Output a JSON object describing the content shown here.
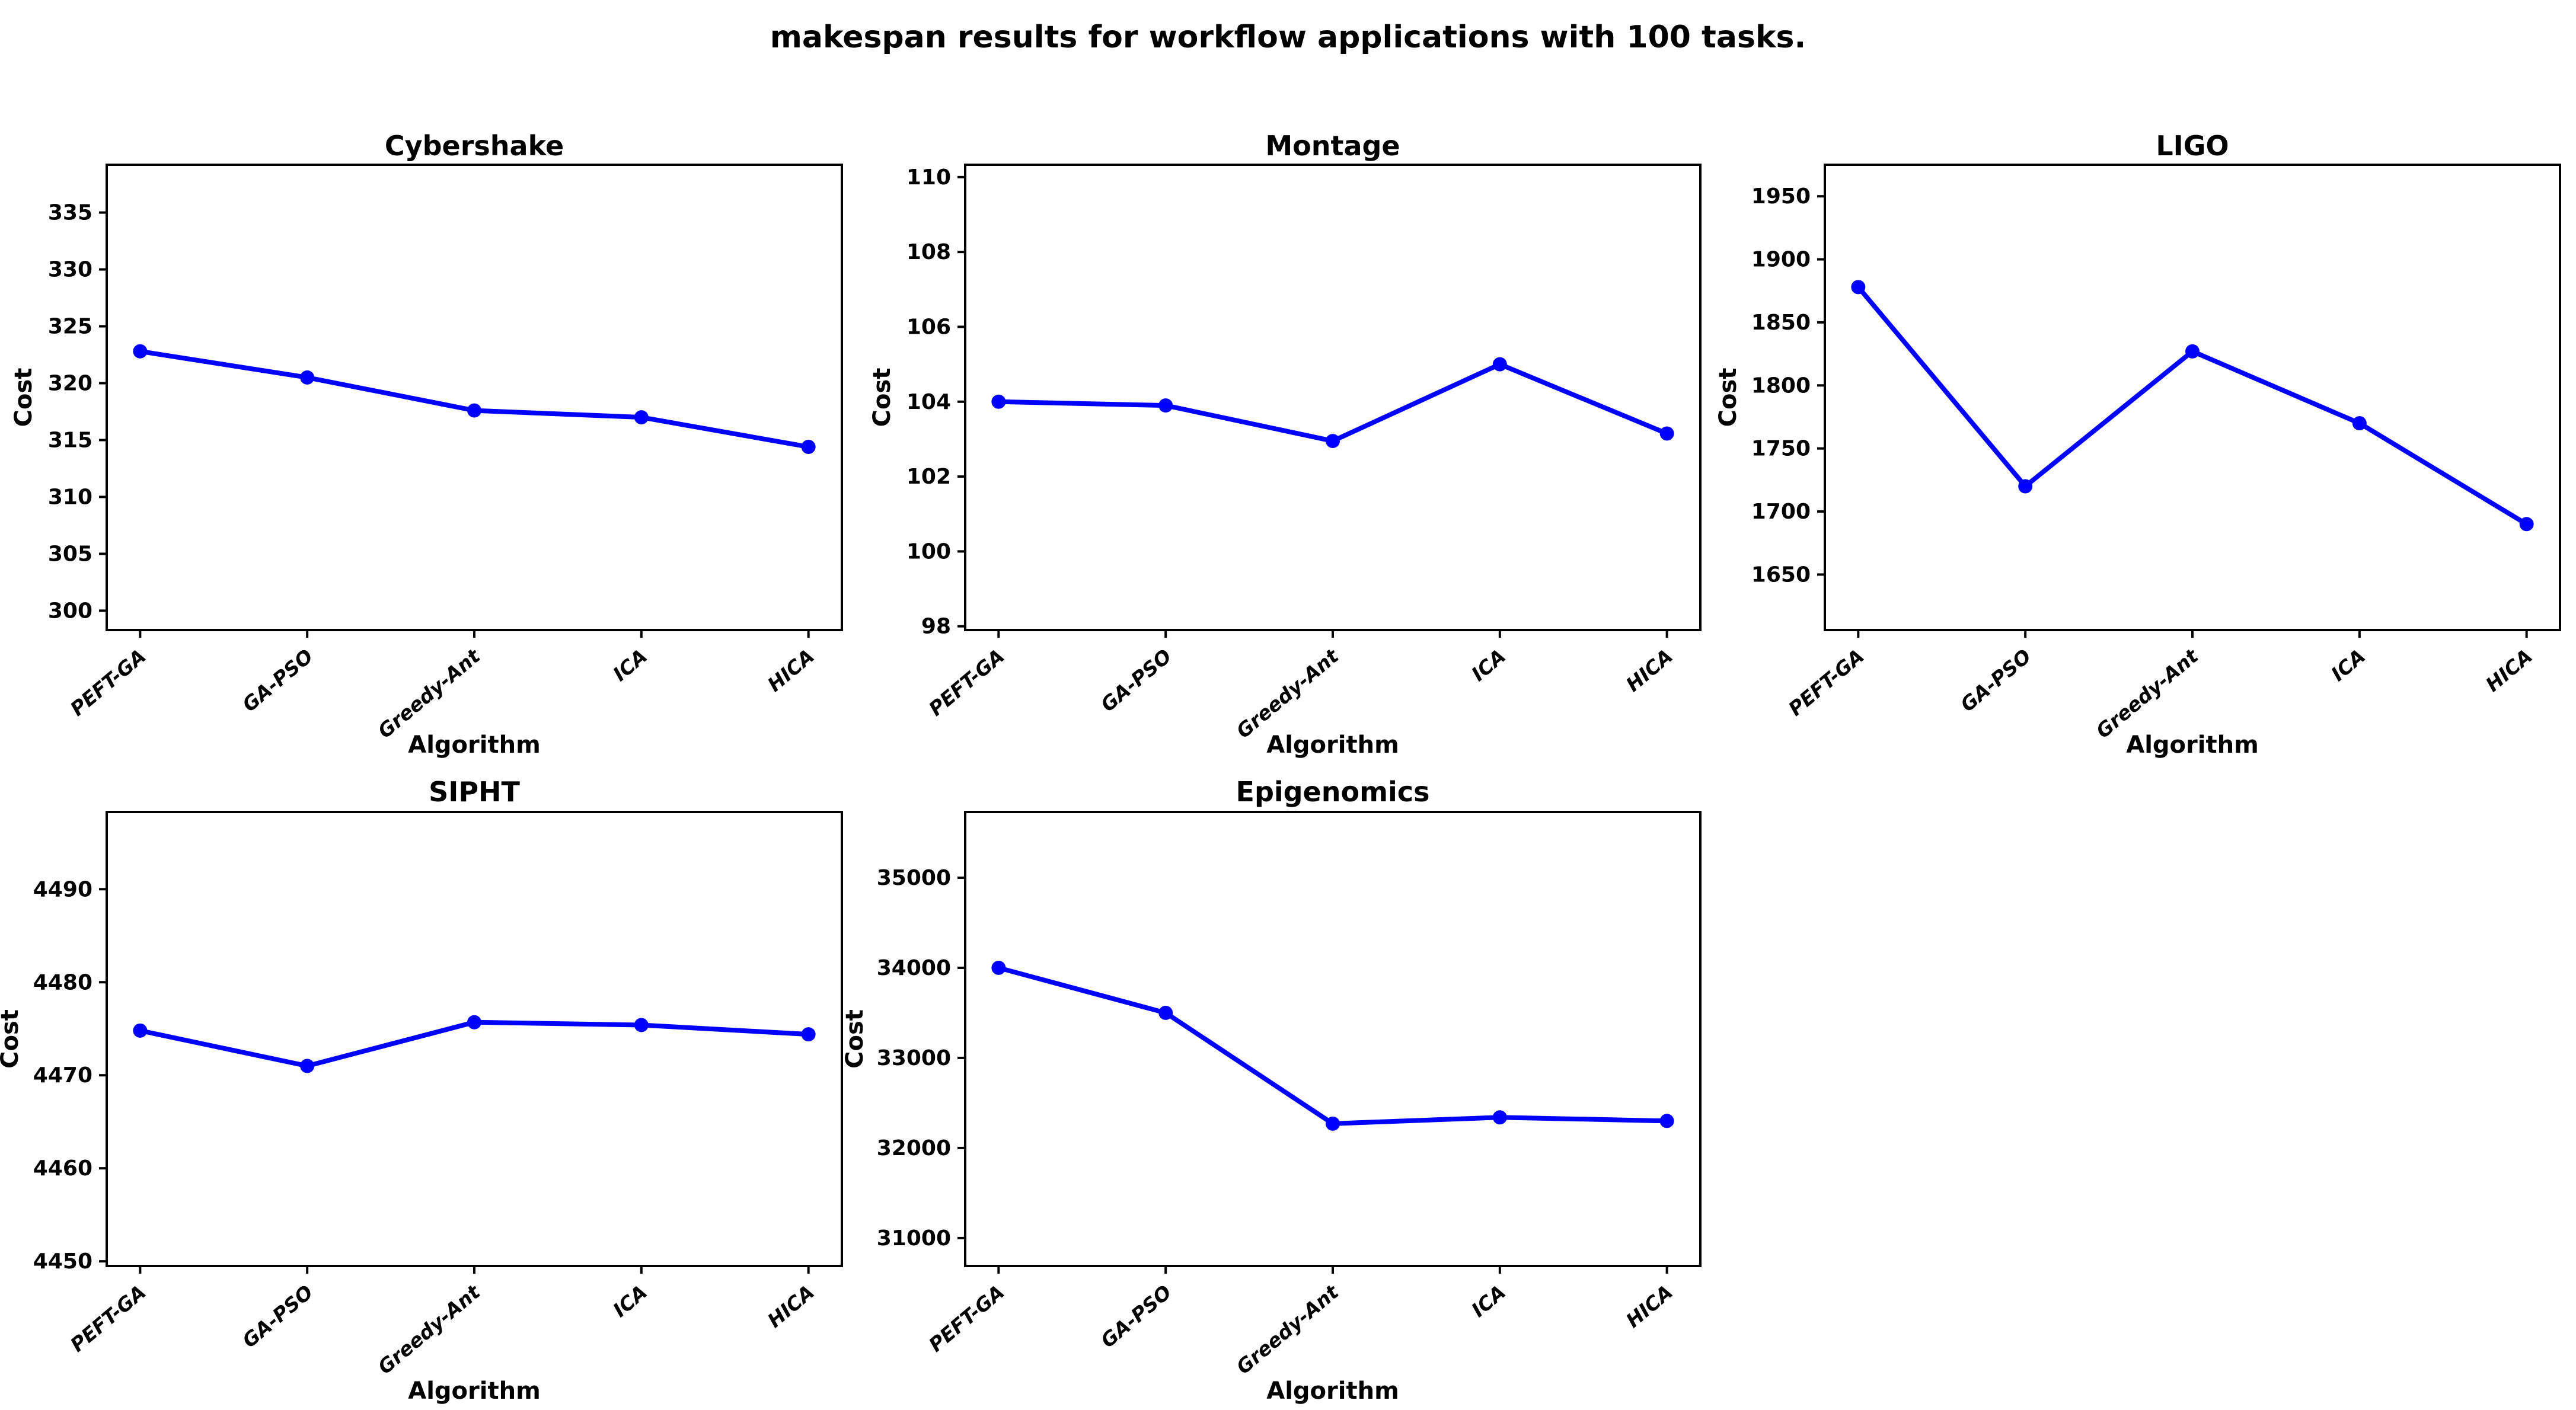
{
  "figure": {
    "title": "makespan results for workflow applications with 100 tasks.",
    "background_color": "#FFFFFF",
    "text_color": "#000000",
    "line_color": "#0000FF"
  },
  "chart_data": [
    {
      "type": "line",
      "title": "Cybershake",
      "xlabel": "Algorithm",
      "ylabel": "Cost",
      "categories": [
        "PEFT-GA",
        "GA-PSO",
        "Greedy-Ant",
        "ICA",
        "HICA"
      ],
      "values": [
        322.8,
        320.5,
        317.6,
        317.0,
        314.4
      ],
      "yticks": [
        300,
        305,
        310,
        315,
        320,
        325,
        330,
        335
      ],
      "ylim": [
        298.3,
        339.2
      ],
      "xlim": [
        -0.2,
        4.2
      ],
      "grid": false,
      "legend": false,
      "line_color": "#0000FF",
      "marker": "circle"
    },
    {
      "type": "line",
      "title": "Montage",
      "xlabel": "Algorithm",
      "ylabel": "Cost",
      "categories": [
        "PEFT-GA",
        "GA-PSO",
        "Greedy-Ant",
        "ICA",
        "HICA"
      ],
      "values": [
        104.0,
        103.9,
        102.95,
        105.0,
        103.15
      ],
      "yticks": [
        98,
        100,
        102,
        104,
        106,
        108,
        110
      ],
      "ylim": [
        97.9,
        110.33
      ],
      "xlim": [
        -0.2,
        4.2
      ],
      "grid": false,
      "legend": false,
      "line_color": "#0000FF",
      "marker": "circle"
    },
    {
      "type": "line",
      "title": "LIGO",
      "xlabel": "Algorithm",
      "ylabel": "Cost",
      "categories": [
        "PEFT-GA",
        "GA-PSO",
        "Greedy-Ant",
        "ICA",
        "HICA"
      ],
      "values": [
        1878,
        1720,
        1827,
        1770,
        1690
      ],
      "yticks": [
        1650,
        1700,
        1750,
        1800,
        1850,
        1900,
        1950
      ],
      "ylim": [
        1606,
        1975
      ],
      "xlim": [
        -0.2,
        4.2
      ],
      "grid": false,
      "legend": false,
      "line_color": "#0000FF",
      "marker": "circle"
    },
    {
      "type": "line",
      "title": "SIPHT",
      "xlabel": "Algorithm",
      "ylabel": "Cost",
      "categories": [
        "PEFT-GA",
        "GA-PSO",
        "Greedy-Ant",
        "ICA",
        "HICA"
      ],
      "values": [
        4474.8,
        4471.0,
        4475.7,
        4475.4,
        4474.4
      ],
      "yticks": [
        4450,
        4460,
        4470,
        4480,
        4490
      ],
      "ylim": [
        4449.5,
        4498.3
      ],
      "xlim": [
        -0.2,
        4.2
      ],
      "grid": false,
      "legend": false,
      "line_color": "#0000FF",
      "marker": "circle"
    },
    {
      "type": "line",
      "title": "Epigenomics",
      "xlabel": "Algorithm",
      "ylabel": "Cost",
      "categories": [
        "PEFT-GA",
        "GA-PSO",
        "Greedy-Ant",
        "ICA",
        "HICA"
      ],
      "values": [
        34000,
        33500,
        32270,
        32340,
        32300
      ],
      "yticks": [
        31000,
        32000,
        33000,
        34000,
        35000
      ],
      "ylim": [
        30690,
        35730
      ],
      "xlim": [
        -0.2,
        4.2
      ],
      "grid": false,
      "legend": false,
      "line_color": "#0000FF",
      "marker": "circle"
    }
  ]
}
